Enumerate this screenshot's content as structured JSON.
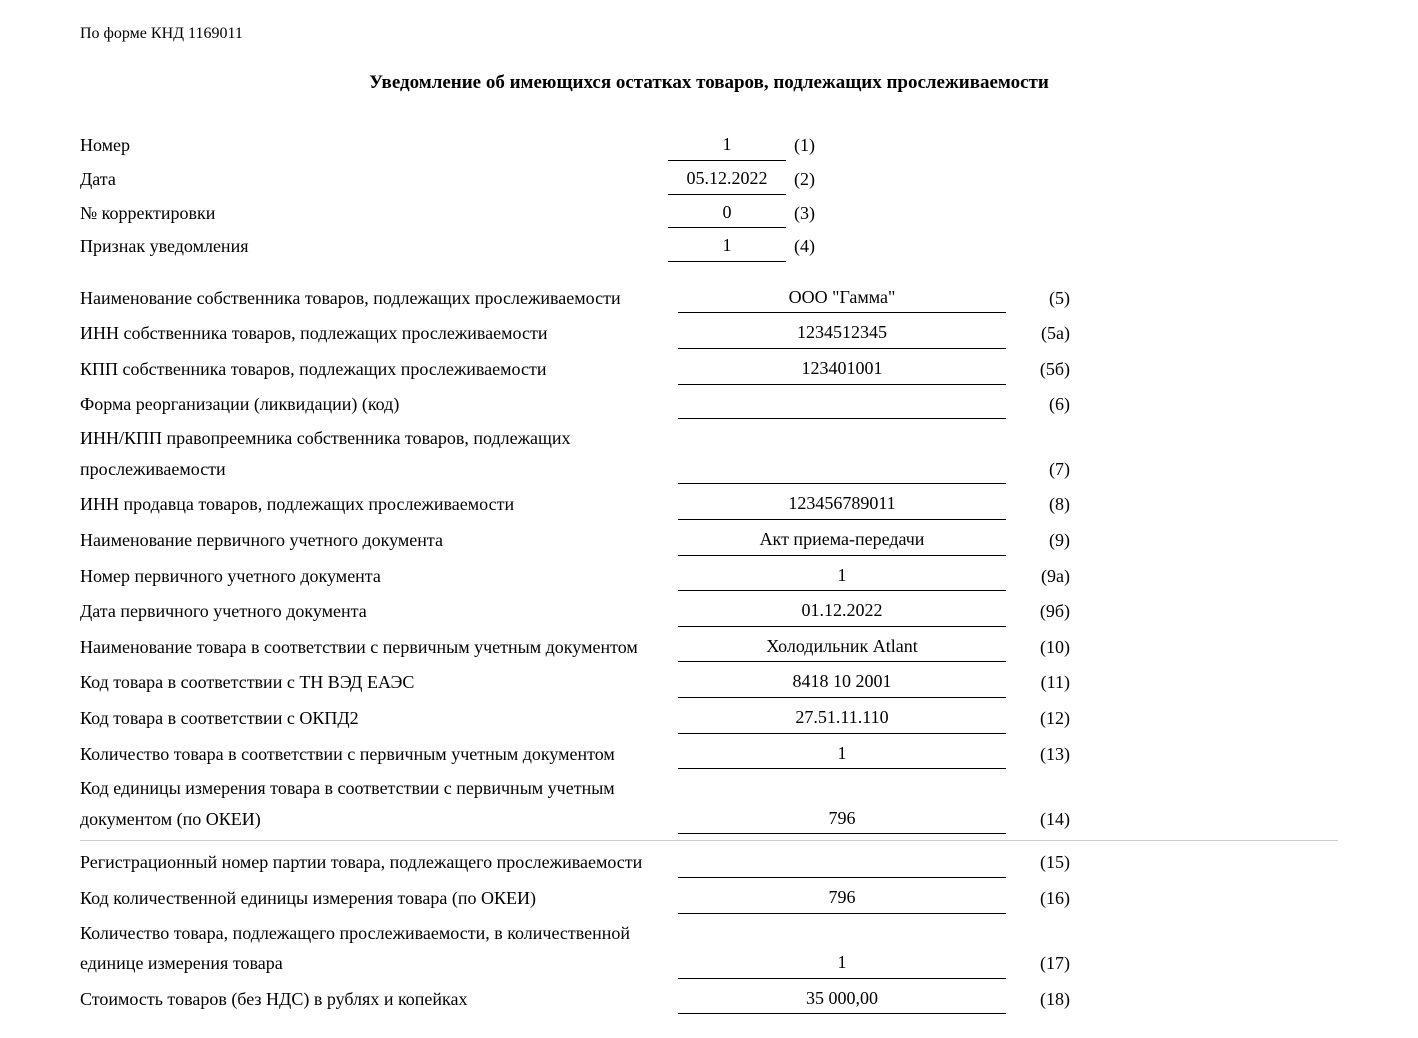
{
  "form_code": "По форме КНД 1169011",
  "title": "Уведомление об имеющихся остатках товаров, подлежащих прослеживаемости",
  "top": [
    {
      "label": "Номер",
      "value": "1",
      "num": "(1)"
    },
    {
      "label": "Дата",
      "value": "05.12.2022",
      "num": "(2)"
    },
    {
      "label": "№ корректировки",
      "value": "0",
      "num": "(3)"
    },
    {
      "label": "Признак уведомления",
      "value": "1",
      "num": "(4)"
    }
  ],
  "rows": [
    {
      "label": "Наименование собственника товаров, подлежащих прослеживаемости",
      "value": "ООО \"Гамма\"",
      "num": "(5)"
    },
    {
      "label": "ИНН собственника товаров, подлежащих прослеживаемости",
      "value": "1234512345",
      "num": "(5а)"
    },
    {
      "label": "КПП собственника товаров, подлежащих прослеживаемости",
      "value": "123401001",
      "num": "(5б)"
    },
    {
      "label": "Форма реорганизации (ликвидации) (код)",
      "value": "",
      "num": "(6)"
    },
    {
      "label": "ИНН/КПП правопреемника собственника товаров, подлежащих прослеживаемости",
      "value": "",
      "num": "(7)"
    },
    {
      "label": "ИНН продавца товаров, подлежащих прослеживаемости",
      "value": "123456789011",
      "num": "(8)"
    },
    {
      "label": "Наименование первичного учетного документа",
      "value": "Акт приема-передачи",
      "num": "(9)"
    },
    {
      "label": "Номер первичного учетного документа",
      "value": "1",
      "num": "(9а)"
    },
    {
      "label": "Дата первичного учетного документа",
      "value": "01.12.2022",
      "num": "(9б)"
    },
    {
      "label": "Наименование товара в соответствии с первичным учетным документом",
      "value": "Холодильник Atlant",
      "num": "(10)"
    },
    {
      "label": "Код товара в соответствии с ТН ВЭД ЕАЭС",
      "value": "8418 10 2001",
      "num": "(11)"
    },
    {
      "label": "Код товара в соответствии с ОКПД2",
      "value": "27.51.11.110",
      "num": "(12)"
    },
    {
      "label": "Количество товара в соответствии с первичным учетным документом",
      "value": "1",
      "num": "(13)"
    },
    {
      "label": "Код единицы измерения товара в соответствии с первичным учетным документом (по ОКЕИ)",
      "value": "796",
      "num": "(14)",
      "hr_after": true
    },
    {
      "label": "Регистрационный номер партии товара, подлежащего прослеживаемости",
      "value": "",
      "num": "(15)"
    },
    {
      "label": "Код количественной единицы измерения товара (по ОКЕИ)",
      "value": "796",
      "num": "(16)"
    },
    {
      "label": "Количество товара, подлежащего прослеживаемости, в количественной единице измерения товара",
      "value": "1",
      "num": "(17)"
    },
    {
      "label": "Стоимость товаров (без НДС) в рублях и копейках",
      "value": "35 000,00",
      "num": "(18)"
    }
  ]
}
